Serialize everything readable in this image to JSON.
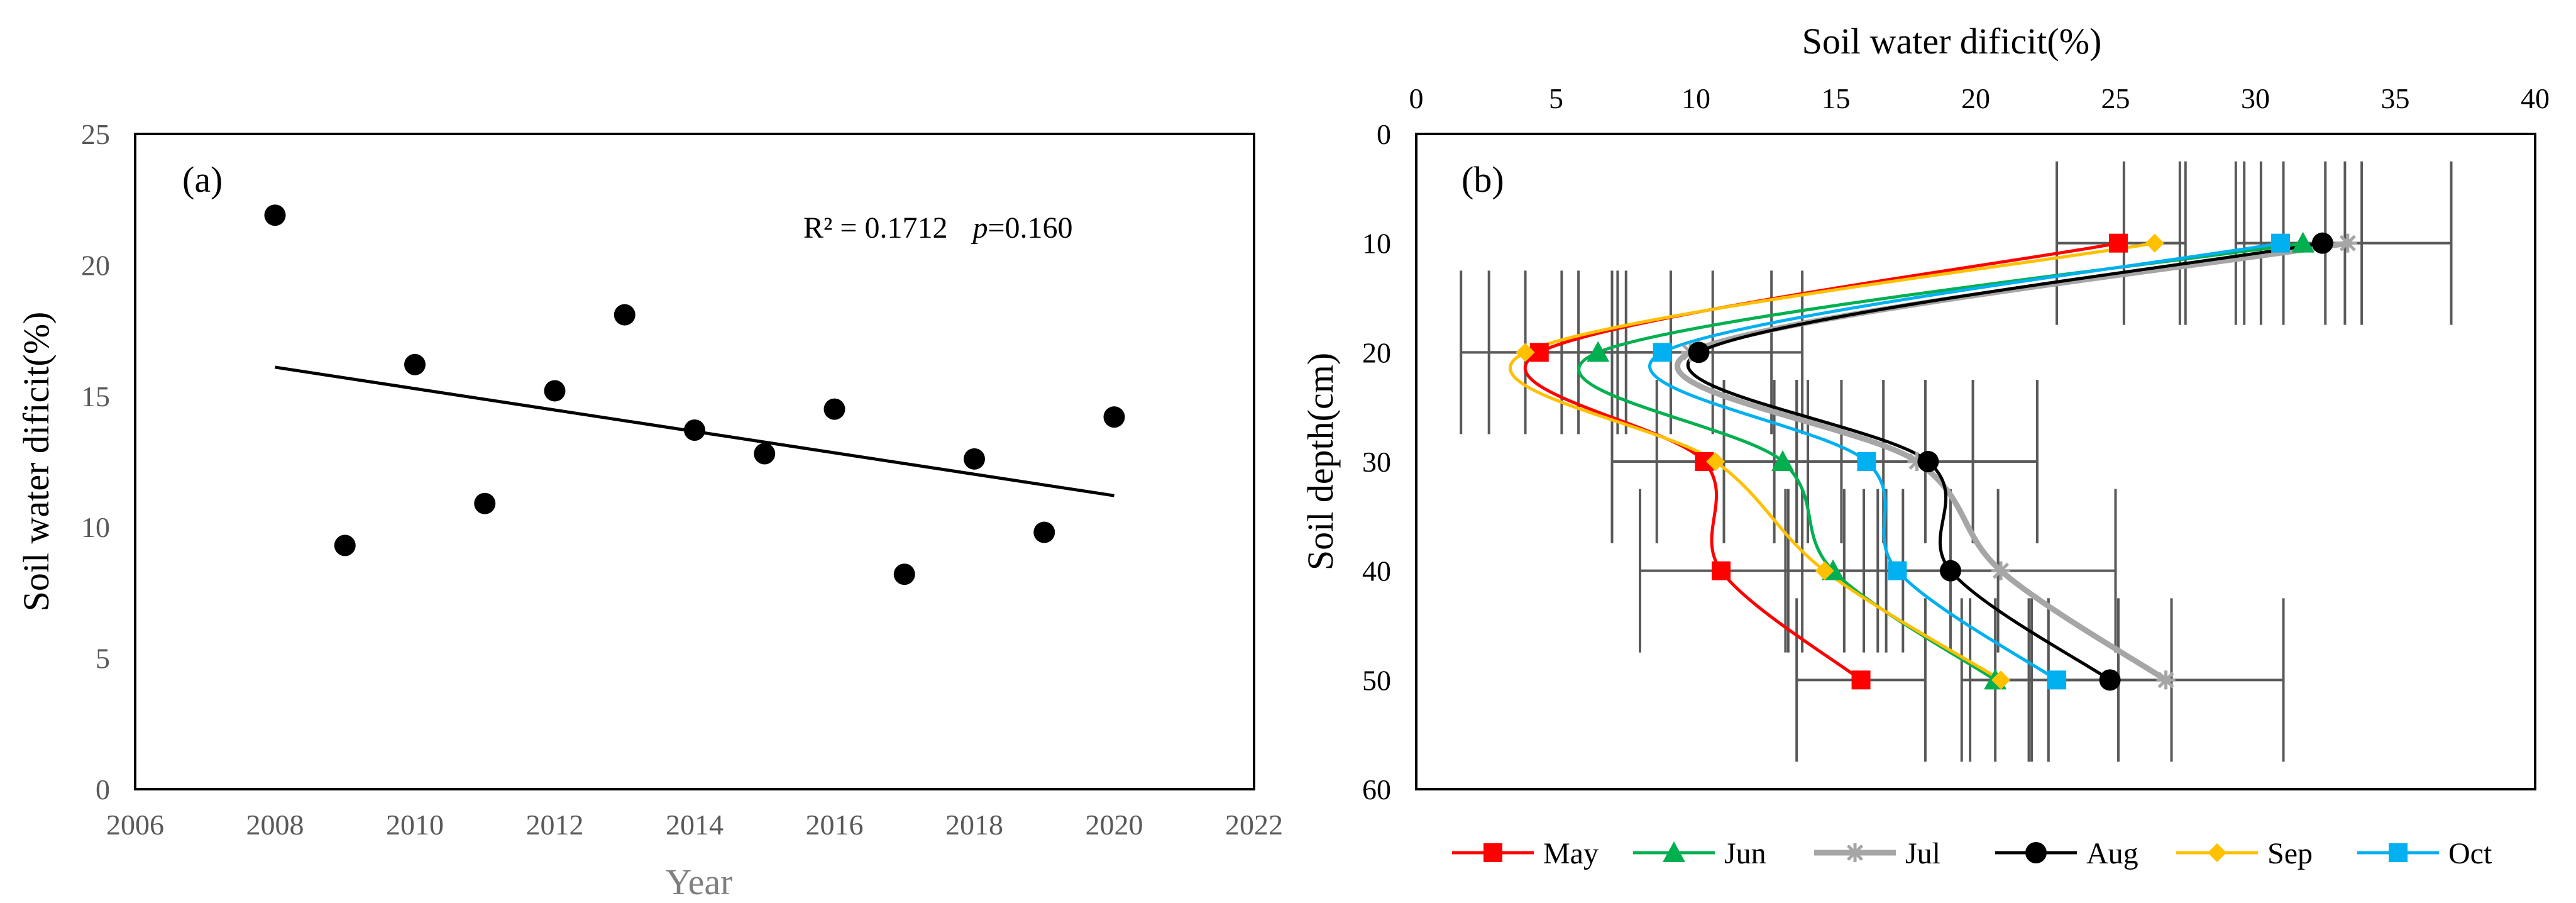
{
  "chart_data": [
    {
      "panel_label": "(a)",
      "type": "scatter",
      "title": "",
      "xlabel": "Year",
      "ylabel": "Soil water dificit(%)",
      "xlim": [
        2006,
        2022
      ],
      "ylim": [
        0,
        25
      ],
      "xticks": [
        2006,
        2008,
        2010,
        2012,
        2014,
        2016,
        2018,
        2020,
        2022
      ],
      "yticks": [
        0,
        5,
        10,
        15,
        20,
        25
      ],
      "x": [
        2008,
        2009,
        2010,
        2011,
        2012,
        2013,
        2014,
        2015,
        2016,
        2017,
        2018,
        2019,
        2020
      ],
      "y": [
        21.9,
        9.3,
        16.2,
        10.9,
        15.2,
        18.1,
        13.7,
        12.8,
        14.5,
        8.2,
        12.6,
        9.8,
        14.2
      ],
      "trendline": {
        "x": [
          2008,
          2020
        ],
        "y": [
          16.1,
          11.2
        ]
      },
      "annotation": {
        "r2_text": "R² = 0.1712",
        "p_label": "p",
        "p_text": "=0.160"
      },
      "grid": false,
      "point_color": "#000000"
    },
    {
      "panel_label": "(b)",
      "type": "line",
      "title": "",
      "xlabel": "Soil water dificit(%)",
      "ylabel": "Soil depth(cm)",
      "xlim": [
        0,
        40
      ],
      "ylim": [
        0,
        60
      ],
      "xticks": [
        0,
        5,
        10,
        15,
        20,
        25,
        30,
        35,
        40
      ],
      "yticks": [
        0,
        10,
        20,
        30,
        40,
        50,
        60
      ],
      "x_axis_position": "top",
      "y_axis_inverted": true,
      "legend_position": "bottom",
      "depths": [
        10,
        20,
        30,
        40,
        50
      ],
      "series": [
        {
          "name": "May",
          "color": "#ff0000",
          "marker": "square",
          "values": [
            25.1,
            4.4,
            10.3,
            10.9,
            15.9
          ],
          "error": [
            2.2,
            2.8,
            3.3,
            2.9,
            2.3
          ]
        },
        {
          "name": "Jun",
          "color": "#00b050",
          "marker": "triangle",
          "values": [
            31.7,
            6.5,
            13.1,
            14.9,
            20.7
          ],
          "error": [
            1.5,
            2.6,
            2.1,
            1.6,
            1.2
          ]
        },
        {
          "name": "Jul",
          "color": "#a6a6a6",
          "marker": "star",
          "values": [
            33.3,
            9.8,
            17.9,
            20.9,
            26.8
          ],
          "error": [
            3.7,
            4.0,
            4.3,
            4.1,
            4.2
          ]
        },
        {
          "name": "Aug",
          "color": "#000000",
          "marker": "circle",
          "values": [
            32.4,
            10.1,
            18.3,
            19.1,
            24.8
          ],
          "error": [
            1.4,
            2.6,
            1.6,
            1.7,
            2.2
          ]
        },
        {
          "name": "Sep",
          "color": "#ffc000",
          "marker": "diamond",
          "values": [
            26.4,
            3.9,
            10.7,
            14.6,
            20.9
          ],
          "error": [
            1.1,
            1.3,
            2.1,
            1.4,
            1.1
          ]
        },
        {
          "name": "Oct",
          "color": "#00b0f0",
          "marker": "square",
          "values": [
            30.9,
            8.8,
            16.1,
            17.2,
            22.9
          ],
          "error": [
            1.6,
            1.8,
            2.1,
            1.9,
            2.2
          ]
        }
      ]
    }
  ]
}
